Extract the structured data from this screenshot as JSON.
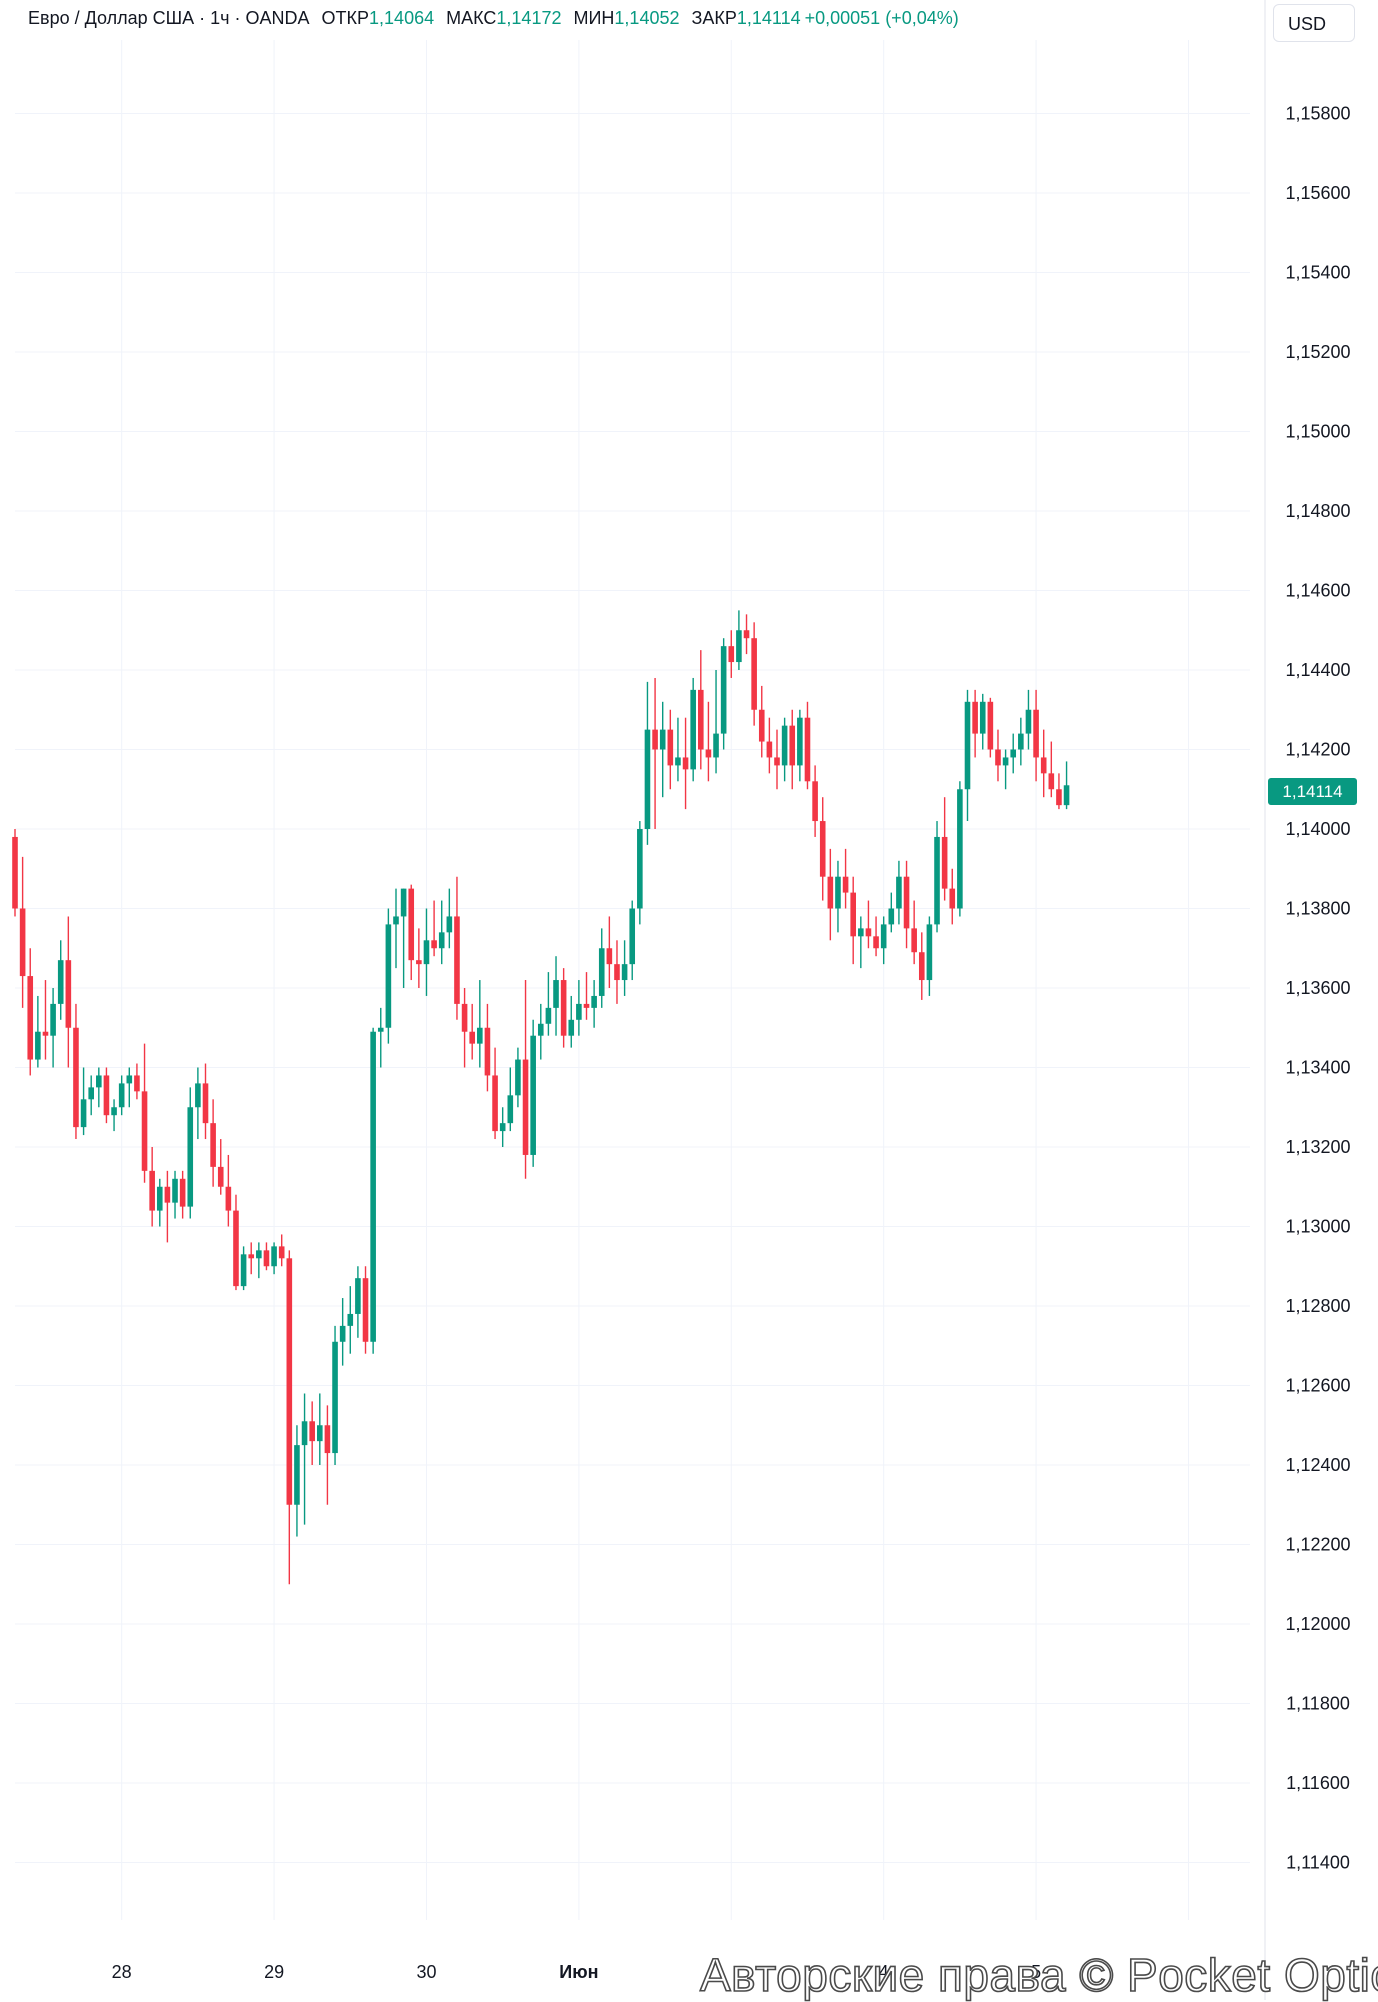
{
  "header": {
    "symbol": "Евро / Доллар США · 1ч · OANDA",
    "open_label": "ОТКР",
    "open_value": "1,14064",
    "high_label": "МАКС",
    "high_value": "1,14172",
    "low_label": "МИН",
    "low_value": "1,14052",
    "close_label": "ЗАКР",
    "close_value": "1,14114",
    "change": "+0,00051 (+0,04%)"
  },
  "currency_button": "USD",
  "last_price": "1,14114",
  "watermark": "Авторские права © Pocket Option",
  "colors": {
    "up": "#089981",
    "down": "#f23645",
    "grid": "#f0f3fa"
  },
  "chart_data": {
    "type": "candlestick",
    "ylim": [
      1.113,
      1.1595
    ],
    "y_ticks": [
      "1,15800",
      "1,15600",
      "1,15400",
      "1,15200",
      "1,15000",
      "1,14800",
      "1,14600",
      "1,14400",
      "1,14200",
      "1,14000",
      "1,13800",
      "1,13600",
      "1,13400",
      "1,13200",
      "1,13000",
      "1,12800",
      "1,12600",
      "1,12400",
      "1,12200",
      "1,12000",
      "1,11800",
      "1,11600",
      "1,11400"
    ],
    "y_tick_values": [
      1.158,
      1.156,
      1.154,
      1.152,
      1.15,
      1.148,
      1.146,
      1.144,
      1.142,
      1.14,
      1.138,
      1.136,
      1.134,
      1.132,
      1.13,
      1.128,
      1.126,
      1.124,
      1.122,
      1.12,
      1.118,
      1.116,
      1.114
    ],
    "x_tick_labels": [
      "28",
      "29",
      "30",
      "Июн",
      "",
      "4",
      "5",
      ""
    ],
    "x_tick_bar_index": [
      14,
      34,
      54,
      74,
      94,
      114,
      134,
      154
    ],
    "candles": [
      [
        1.1398,
        1.14,
        1.1378,
        1.138
      ],
      [
        1.138,
        1.1393,
        1.1355,
        1.1363
      ],
      [
        1.1363,
        1.137,
        1.1338,
        1.1342
      ],
      [
        1.1342,
        1.1358,
        1.134,
        1.1349
      ],
      [
        1.1349,
        1.1362,
        1.1342,
        1.1348
      ],
      [
        1.1348,
        1.136,
        1.134,
        1.1356
      ],
      [
        1.1356,
        1.1372,
        1.1352,
        1.1367
      ],
      [
        1.1367,
        1.1378,
        1.134,
        1.135
      ],
      [
        1.135,
        1.1356,
        1.1322,
        1.1325
      ],
      [
        1.1325,
        1.134,
        1.1323,
        1.1332
      ],
      [
        1.1332,
        1.1338,
        1.1328,
        1.1335
      ],
      [
        1.1335,
        1.134,
        1.133,
        1.1338
      ],
      [
        1.1338,
        1.134,
        1.1326,
        1.1328
      ],
      [
        1.1328,
        1.1332,
        1.1324,
        1.133
      ],
      [
        1.133,
        1.1338,
        1.1328,
        1.1336
      ],
      [
        1.1336,
        1.134,
        1.133,
        1.1338
      ],
      [
        1.1338,
        1.1341,
        1.1332,
        1.1334
      ],
      [
        1.1334,
        1.1346,
        1.1311,
        1.1314
      ],
      [
        1.1314,
        1.132,
        1.13,
        1.1304
      ],
      [
        1.1304,
        1.1312,
        1.13,
        1.131
      ],
      [
        1.131,
        1.1314,
        1.1296,
        1.1306
      ],
      [
        1.1306,
        1.1314,
        1.1302,
        1.1312
      ],
      [
        1.1312,
        1.1314,
        1.1302,
        1.1305
      ],
      [
        1.1305,
        1.1335,
        1.1302,
        1.133
      ],
      [
        1.133,
        1.134,
        1.1322,
        1.1336
      ],
      [
        1.1336,
        1.1341,
        1.1322,
        1.1326
      ],
      [
        1.1326,
        1.1332,
        1.131,
        1.1315
      ],
      [
        1.1315,
        1.1322,
        1.1308,
        1.131
      ],
      [
        1.131,
        1.1318,
        1.13,
        1.1304
      ],
      [
        1.1304,
        1.1308,
        1.1284,
        1.1285
      ],
      [
        1.1285,
        1.1295,
        1.1284,
        1.1293
      ],
      [
        1.1293,
        1.1296,
        1.1288,
        1.1292
      ],
      [
        1.1292,
        1.1296,
        1.1287,
        1.1294
      ],
      [
        1.1294,
        1.1296,
        1.1289,
        1.129
      ],
      [
        1.129,
        1.1296,
        1.1288,
        1.1295
      ],
      [
        1.1295,
        1.1298,
        1.129,
        1.1292
      ],
      [
        1.1292,
        1.1294,
        1.121,
        1.123
      ],
      [
        1.123,
        1.125,
        1.1222,
        1.1245
      ],
      [
        1.1245,
        1.1258,
        1.1225,
        1.1251
      ],
      [
        1.1251,
        1.1256,
        1.124,
        1.1246
      ],
      [
        1.1246,
        1.1258,
        1.124,
        1.125
      ],
      [
        1.125,
        1.1255,
        1.123,
        1.1243
      ],
      [
        1.1243,
        1.1275,
        1.124,
        1.1271
      ],
      [
        1.1271,
        1.1282,
        1.1265,
        1.1275
      ],
      [
        1.1275,
        1.1285,
        1.1268,
        1.1278
      ],
      [
        1.1278,
        1.129,
        1.1272,
        1.1287
      ],
      [
        1.1287,
        1.129,
        1.1268,
        1.1271
      ],
      [
        1.1271,
        1.135,
        1.1268,
        1.1349
      ],
      [
        1.1349,
        1.1355,
        1.134,
        1.135
      ],
      [
        1.135,
        1.138,
        1.1346,
        1.1376
      ],
      [
        1.1376,
        1.1385,
        1.1365,
        1.1378
      ],
      [
        1.1378,
        1.1385,
        1.136,
        1.1385
      ],
      [
        1.1385,
        1.1386,
        1.1362,
        1.1367
      ],
      [
        1.1367,
        1.1375,
        1.136,
        1.1366
      ],
      [
        1.1366,
        1.138,
        1.1358,
        1.1372
      ],
      [
        1.1372,
        1.1382,
        1.1368,
        1.137
      ],
      [
        1.137,
        1.1382,
        1.1366,
        1.1374
      ],
      [
        1.1374,
        1.1385,
        1.137,
        1.1378
      ],
      [
        1.1378,
        1.1388,
        1.1352,
        1.1356
      ],
      [
        1.1356,
        1.136,
        1.134,
        1.1349
      ],
      [
        1.1349,
        1.1356,
        1.1342,
        1.1346
      ],
      [
        1.1346,
        1.1362,
        1.134,
        1.135
      ],
      [
        1.135,
        1.1356,
        1.1334,
        1.1338
      ],
      [
        1.1338,
        1.1345,
        1.1322,
        1.1324
      ],
      [
        1.1324,
        1.133,
        1.132,
        1.1326
      ],
      [
        1.1326,
        1.134,
        1.1324,
        1.1333
      ],
      [
        1.1333,
        1.1345,
        1.133,
        1.1342
      ],
      [
        1.1342,
        1.1362,
        1.1312,
        1.1318
      ],
      [
        1.1318,
        1.1352,
        1.1315,
        1.1348
      ],
      [
        1.1348,
        1.1356,
        1.1342,
        1.1351
      ],
      [
        1.1351,
        1.1364,
        1.1348,
        1.1355
      ],
      [
        1.1355,
        1.1368,
        1.1348,
        1.1362
      ],
      [
        1.1362,
        1.1365,
        1.1345,
        1.1348
      ],
      [
        1.1348,
        1.1358,
        1.1345,
        1.1352
      ],
      [
        1.1352,
        1.1362,
        1.1348,
        1.1356
      ],
      [
        1.1356,
        1.1364,
        1.1352,
        1.1355
      ],
      [
        1.1355,
        1.1362,
        1.135,
        1.1358
      ],
      [
        1.1358,
        1.1375,
        1.1355,
        1.137
      ],
      [
        1.137,
        1.1378,
        1.136,
        1.1366
      ],
      [
        1.1366,
        1.1372,
        1.1356,
        1.1362
      ],
      [
        1.1362,
        1.1372,
        1.1358,
        1.1366
      ],
      [
        1.1366,
        1.1382,
        1.1362,
        1.138
      ],
      [
        1.138,
        1.1402,
        1.1376,
        1.14
      ],
      [
        1.14,
        1.1437,
        1.1396,
        1.1425
      ],
      [
        1.1425,
        1.1438,
        1.14,
        1.142
      ],
      [
        1.142,
        1.1432,
        1.1408,
        1.1425
      ],
      [
        1.1425,
        1.143,
        1.141,
        1.1416
      ],
      [
        1.1416,
        1.1428,
        1.1412,
        1.1418
      ],
      [
        1.1418,
        1.1428,
        1.1405,
        1.1415
      ],
      [
        1.1415,
        1.1438,
        1.1412,
        1.1435
      ],
      [
        1.1435,
        1.1445,
        1.1415,
        1.142
      ],
      [
        1.142,
        1.1432,
        1.1412,
        1.1418
      ],
      [
        1.1418,
        1.144,
        1.1414,
        1.1424
      ],
      [
        1.1424,
        1.1448,
        1.142,
        1.1446
      ],
      [
        1.1446,
        1.145,
        1.1438,
        1.1442
      ],
      [
        1.1442,
        1.1455,
        1.144,
        1.145
      ],
      [
        1.145,
        1.1454,
        1.1444,
        1.1448
      ],
      [
        1.1448,
        1.1452,
        1.1426,
        1.143
      ],
      [
        1.143,
        1.1436,
        1.1418,
        1.1422
      ],
      [
        1.1422,
        1.1428,
        1.1414,
        1.1418
      ],
      [
        1.1418,
        1.1425,
        1.141,
        1.1416
      ],
      [
        1.1416,
        1.1428,
        1.1412,
        1.1426
      ],
      [
        1.1426,
        1.143,
        1.141,
        1.1416
      ],
      [
        1.1416,
        1.143,
        1.1412,
        1.1428
      ],
      [
        1.1428,
        1.1432,
        1.141,
        1.1412
      ],
      [
        1.1412,
        1.1416,
        1.1398,
        1.1402
      ],
      [
        1.1402,
        1.1408,
        1.1382,
        1.1388
      ],
      [
        1.1388,
        1.1395,
        1.1372,
        1.138
      ],
      [
        1.138,
        1.1392,
        1.1374,
        1.1388
      ],
      [
        1.1388,
        1.1395,
        1.138,
        1.1384
      ],
      [
        1.1384,
        1.1388,
        1.1366,
        1.1373
      ],
      [
        1.1373,
        1.1378,
        1.1365,
        1.1375
      ],
      [
        1.1375,
        1.1382,
        1.137,
        1.1373
      ],
      [
        1.1373,
        1.1378,
        1.1368,
        1.137
      ],
      [
        1.137,
        1.1378,
        1.1366,
        1.1376
      ],
      [
        1.1376,
        1.1384,
        1.1374,
        1.138
      ],
      [
        1.138,
        1.1392,
        1.1376,
        1.1388
      ],
      [
        1.1388,
        1.1392,
        1.137,
        1.1375
      ],
      [
        1.1375,
        1.1382,
        1.1366,
        1.1369
      ],
      [
        1.1369,
        1.1374,
        1.1357,
        1.1362
      ],
      [
        1.1362,
        1.1378,
        1.1358,
        1.1376
      ],
      [
        1.1376,
        1.1402,
        1.1374,
        1.1398
      ],
      [
        1.1398,
        1.1408,
        1.1382,
        1.1385
      ],
      [
        1.1385,
        1.139,
        1.1376,
        1.138
      ],
      [
        1.138,
        1.1412,
        1.1378,
        1.141
      ],
      [
        1.141,
        1.1435,
        1.1402,
        1.1432
      ],
      [
        1.1432,
        1.1435,
        1.1418,
        1.1424
      ],
      [
        1.1424,
        1.1434,
        1.142,
        1.1432
      ],
      [
        1.1432,
        1.1433,
        1.1418,
        1.142
      ],
      [
        1.142,
        1.1425,
        1.1412,
        1.1416
      ],
      [
        1.1416,
        1.142,
        1.141,
        1.1418
      ],
      [
        1.1418,
        1.1424,
        1.1414,
        1.142
      ],
      [
        1.142,
        1.1428,
        1.1416,
        1.1424
      ],
      [
        1.1424,
        1.1435,
        1.142,
        1.143
      ],
      [
        1.143,
        1.1435,
        1.1412,
        1.1418
      ],
      [
        1.1418,
        1.1425,
        1.1408,
        1.1414
      ],
      [
        1.1414,
        1.1422,
        1.1408,
        1.141
      ],
      [
        1.141,
        1.1414,
        1.1405,
        1.1406
      ],
      [
        1.1406,
        1.1417,
        1.1405,
        1.1411
      ]
    ]
  }
}
